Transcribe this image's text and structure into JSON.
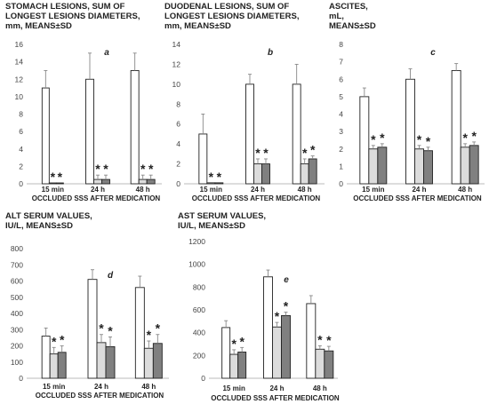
{
  "chart_data": [
    {
      "type": "bar",
      "panel": "a",
      "title": [
        "STOMACH LESIONS, SUM OF",
        "LONGEST LESIONS DIAMETERS,",
        "mm,  MEANS±SD"
      ],
      "xlabel": "OCCLUDED SSS AFTER MEDICATION",
      "categories": [
        "15 min",
        "24 h",
        "48 h"
      ],
      "ylim": [
        0,
        16
      ],
      "yticks": [
        0,
        2,
        4,
        6,
        8,
        10,
        12,
        14,
        16
      ],
      "colors": [
        "#ffffff",
        "#dcdcdc",
        "#808080"
      ],
      "series": [
        {
          "values": [
            11,
            12,
            13
          ],
          "sd": [
            2,
            3,
            2
          ],
          "stars": [
            false,
            false,
            false
          ]
        },
        {
          "values": [
            0.1,
            0.5,
            0.5
          ],
          "sd": [
            0,
            0.5,
            0.5
          ],
          "stars": [
            true,
            true,
            true
          ]
        },
        {
          "values": [
            0.1,
            0.5,
            0.5
          ],
          "sd": [
            0,
            0.5,
            0.5
          ],
          "stars": [
            true,
            true,
            true
          ]
        }
      ]
    },
    {
      "type": "bar",
      "panel": "b",
      "title": [
        "DUODENAL LESIONS, SUM OF",
        "LONGEST LESIONS DIAMETERS,",
        "mm,  MEANS±SD"
      ],
      "xlabel": "OCCLUDED SSS AFTER MEDICATION",
      "categories": [
        "15 min",
        "24 h",
        "48 h"
      ],
      "ylim": [
        0,
        14
      ],
      "yticks": [
        0,
        2,
        4,
        6,
        8,
        10,
        12,
        14
      ],
      "colors": [
        "#ffffff",
        "#dcdcdc",
        "#808080"
      ],
      "series": [
        {
          "values": [
            5,
            10,
            10
          ],
          "sd": [
            2,
            1,
            2
          ],
          "stars": [
            false,
            false,
            false
          ]
        },
        {
          "values": [
            0.1,
            2,
            2
          ],
          "sd": [
            0,
            0.5,
            0.5
          ],
          "stars": [
            true,
            true,
            true
          ]
        },
        {
          "values": [
            0.1,
            2,
            2.5
          ],
          "sd": [
            0,
            0.5,
            0.3
          ],
          "stars": [
            true,
            true,
            true
          ]
        }
      ]
    },
    {
      "type": "bar",
      "panel": "c",
      "title": [
        "ASCITES,",
        "mL,",
        "MEANS±SD"
      ],
      "xlabel": "OCCLUDED SSS AFTER MEDICATION",
      "categories": [
        "15 min",
        "24 h",
        "48 h"
      ],
      "ylim": [
        0,
        8
      ],
      "yticks": [
        0,
        1,
        2,
        3,
        4,
        5,
        6,
        7,
        8
      ],
      "colors": [
        "#ffffff",
        "#dcdcdc",
        "#808080"
      ],
      "series": [
        {
          "values": [
            5,
            6,
            6.5
          ],
          "sd": [
            0.5,
            0.6,
            0.4
          ],
          "stars": [
            false,
            false,
            false
          ]
        },
        {
          "values": [
            2,
            2,
            2.1
          ],
          "sd": [
            0.2,
            0.2,
            0.2
          ],
          "stars": [
            true,
            true,
            true
          ]
        },
        {
          "values": [
            2.1,
            1.9,
            2.2
          ],
          "sd": [
            0.2,
            0.2,
            0.2
          ],
          "stars": [
            true,
            true,
            true
          ]
        }
      ]
    },
    {
      "type": "bar",
      "panel": "d",
      "title": [
        "ALT SERUM VALUES,",
        "IU/L, MEANS±SD"
      ],
      "xlabel": "OCCLUDED SSS AFTER MEDICATION",
      "categories": [
        "15 min",
        "24 h",
        "48 h"
      ],
      "ylim": [
        0,
        800
      ],
      "yticks": [
        0,
        100,
        200,
        300,
        400,
        500,
        600,
        700,
        800
      ],
      "colors": [
        "#ffffff",
        "#dcdcdc",
        "#808080"
      ],
      "series": [
        {
          "values": [
            260,
            610,
            560
          ],
          "sd": [
            50,
            60,
            70
          ],
          "stars": [
            false,
            false,
            false
          ]
        },
        {
          "values": [
            150,
            220,
            185
          ],
          "sd": [
            40,
            50,
            45
          ],
          "stars": [
            true,
            true,
            true
          ]
        },
        {
          "values": [
            160,
            195,
            215
          ],
          "sd": [
            40,
            60,
            55
          ],
          "stars": [
            true,
            true,
            true
          ]
        }
      ]
    },
    {
      "type": "bar",
      "panel": "e",
      "title": [
        "AST SERUM VALUES,",
        "IU/L, MEANS±SD"
      ],
      "xlabel": "OCCLUDED SSS AFTER MEDICATION",
      "categories": [
        "15 min",
        "24 h",
        "48 h"
      ],
      "ylim": [
        0,
        1200
      ],
      "yticks": [
        0,
        200,
        400,
        600,
        800,
        1000,
        1200
      ],
      "colors": [
        "#ffffff",
        "#dcdcdc",
        "#808080"
      ],
      "series": [
        {
          "values": [
            445,
            890,
            655
          ],
          "sd": [
            60,
            60,
            70
          ],
          "stars": [
            false,
            false,
            false
          ]
        },
        {
          "values": [
            210,
            450,
            255
          ],
          "sd": [
            40,
            40,
            30
          ],
          "stars": [
            true,
            true,
            true
          ]
        },
        {
          "values": [
            230,
            550,
            240
          ],
          "sd": [
            40,
            30,
            40
          ],
          "stars": [
            true,
            true,
            true
          ]
        }
      ]
    }
  ]
}
